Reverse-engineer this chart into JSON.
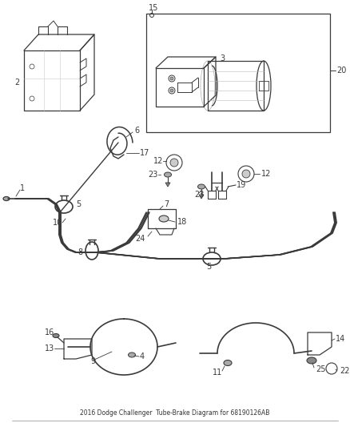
{
  "bg": "#ffffff",
  "lc": "#3a3a3a",
  "lc2": "#555555",
  "fig_w": 4.38,
  "fig_h": 5.33,
  "dpi": 100,
  "title": "2016 Dodge Challenger\nTube-Brake Diagram for 68190126AB"
}
